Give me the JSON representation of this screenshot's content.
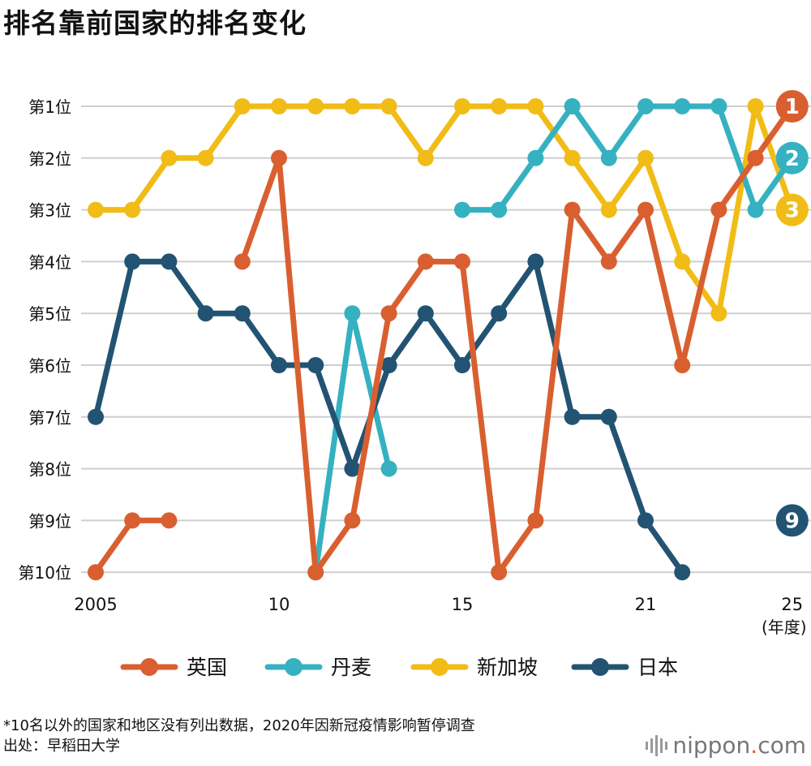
{
  "title": "排名靠前国家的排名变化",
  "chart_data": {
    "type": "line",
    "title": "排名靠前国家的排名变化",
    "x": [
      2005,
      2006,
      2007,
      2008,
      2009,
      2010,
      2011,
      2012,
      2013,
      2014,
      2015,
      2016,
      2017,
      2018,
      2019,
      2021,
      2022,
      2023,
      2024,
      2025
    ],
    "x_tick_labels": [
      {
        "year": 2005,
        "label": "2005"
      },
      {
        "year": 2010,
        "label": "10"
      },
      {
        "year": 2015,
        "label": "15"
      },
      {
        "year": 2021,
        "label": "21"
      },
      {
        "year": 2025,
        "label": "25"
      }
    ],
    "x_unit": "(年度)",
    "y_tick_labels": [
      "第1位",
      "第2位",
      "第3位",
      "第4位",
      "第5位",
      "第6位",
      "第7位",
      "第8位",
      "第9位",
      "第10位"
    ],
    "ylim": [
      1,
      10
    ],
    "y_inverted": true,
    "grid": true,
    "legend_position": "bottom",
    "series": [
      {
        "name": "英国",
        "color": "#d95f30",
        "values": [
          10,
          9,
          9,
          null,
          4,
          2,
          10,
          9,
          5,
          4,
          4,
          10,
          9,
          3,
          4,
          3,
          6,
          3,
          2,
          1
        ]
      },
      {
        "name": "丹麦",
        "color": "#35b1c1",
        "values": [
          null,
          null,
          null,
          null,
          null,
          null,
          10,
          5,
          8,
          null,
          3,
          3,
          2,
          1,
          2,
          1,
          1,
          1,
          3,
          2
        ]
      },
      {
        "name": "新加坡",
        "color": "#f1bc16",
        "values": [
          3,
          3,
          2,
          2,
          1,
          1,
          1,
          1,
          1,
          2,
          1,
          1,
          1,
          2,
          3,
          2,
          4,
          5,
          1,
          3
        ]
      },
      {
        "name": "日本",
        "color": "#225373",
        "values": [
          7,
          4,
          4,
          5,
          5,
          6,
          6,
          8,
          6,
          5,
          6,
          5,
          4,
          7,
          7,
          9,
          10,
          null,
          null,
          9
        ]
      }
    ],
    "end_labels": [
      "1",
      "2",
      "3",
      "9"
    ]
  },
  "footnote": "*10名以外的国家和地区没有列出数据，2020年因新冠疫情影响暂停调查",
  "source": "出处：早稻田大学",
  "logo": {
    "text": "nippon",
    "dot": ".",
    "suffix": "com"
  }
}
